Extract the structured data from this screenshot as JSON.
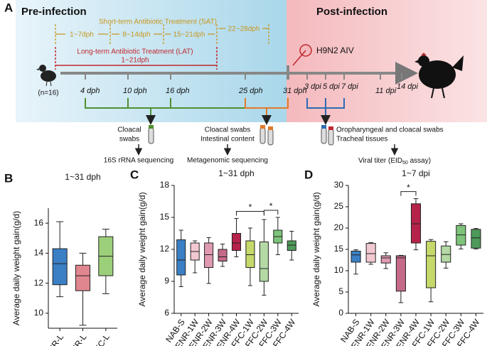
{
  "diagram": {
    "label": "A",
    "pre": "Pre-infection",
    "post": "Post-infection",
    "sat": "Short-term Antibiotic Treatment (SAT)",
    "sat_periods": [
      "1~7dph",
      "8~14dph",
      "15~21dph",
      "22~28dph"
    ],
    "lat": "Long-term Antibiotic Treatment (LAT)",
    "lat_period": "1~21dph",
    "virus": "H9N2 AIV",
    "n": "(n=16)",
    "timepoints": [
      "4 dph",
      "10 dph",
      "16 dph",
      "25 dph",
      "31 dph",
      "3 dpi",
      "5 dpi",
      "7 dpi",
      "11 dpi",
      "14 dpi"
    ],
    "samples": [
      "Cloacal",
      "swabs",
      "Cloacal swabs",
      "Intestinal content",
      "Oropharyngeal and cloacal swabs",
      "Tracheal tissues"
    ],
    "assays": [
      "16S rRNA sequencing",
      "Metagenomic sequencing",
      [
        "Viral titer (EID",
        "50",
        " assay)"
      ]
    ]
  },
  "chart_data": [
    {
      "type": "box",
      "panel": "B",
      "title": "1~31 dph",
      "ylabel": "Average daily weight gain(g/d)",
      "categories": [
        "NNR-L",
        "ENR-L",
        "FFC-L"
      ],
      "colors": [
        "#3b7fc4",
        "#e0868f",
        "#9ccf7a"
      ],
      "min": [
        11.1,
        9.2,
        11.3
      ],
      "q1": [
        11.9,
        11.5,
        12.5
      ],
      "median": [
        13.3,
        12.5,
        13.8
      ],
      "q3": [
        14.3,
        13.2,
        15.1
      ],
      "max": [
        16.1,
        14.0,
        15.6
      ],
      "ylim": [
        9,
        17
      ],
      "yticks": [
        10,
        12,
        14,
        16
      ],
      "significance": []
    },
    {
      "type": "box",
      "panel": "C",
      "title": "1~31 dph",
      "ylabel": "Average daily weight gain(g/d)",
      "categories": [
        "NAB-S",
        "ENR-1W",
        "ENR-2W",
        "ENR-3W",
        "ENR-4W",
        "FFC-1W",
        "FFC-2W",
        "FFC-3W",
        "FFC-4W"
      ],
      "colors": [
        "#3b7fc4",
        "#f2c8d0",
        "#e09ab0",
        "#c56a8a",
        "#b5234a",
        "#c5d96b",
        "#b4d9a4",
        "#7dc47a",
        "#4e9a5a"
      ],
      "min": [
        8.5,
        9.8,
        8.8,
        10.4,
        11.3,
        8.6,
        7.7,
        11.5,
        11.0
      ],
      "q1": [
        9.6,
        11.0,
        10.3,
        10.9,
        11.9,
        10.3,
        9.0,
        12.6,
        11.9
      ],
      "median": [
        11.0,
        11.8,
        11.5,
        11.3,
        12.6,
        11.5,
        10.2,
        13.2,
        12.4
      ],
      "q3": [
        12.9,
        12.6,
        12.6,
        12.0,
        13.5,
        12.8,
        12.7,
        13.8,
        12.8
      ],
      "max": [
        13.8,
        12.8,
        13.1,
        12.5,
        14.9,
        14.0,
        14.8,
        15.0,
        13.7
      ],
      "ylim": [
        6,
        18
      ],
      "yticks": [
        6,
        9,
        12,
        15,
        18
      ],
      "significance": [
        {
          "text": "*",
          "between": [
            "ENR-4W",
            "FFC-2W"
          ]
        },
        {
          "text": "*",
          "between": [
            "FFC-2W",
            "FFC-3W"
          ]
        }
      ]
    },
    {
      "type": "box",
      "panel": "D",
      "title": "1~7 dpi",
      "ylabel": "Average daily weight gain(g/d)",
      "categories": [
        "NAB-S",
        "ENR-1W",
        "ENR-2W",
        "ENR-3W",
        "ENR-4W",
        "FFC-1W",
        "FFC-2W",
        "FFC-3W",
        "FFC-4W"
      ],
      "colors": [
        "#3b7fc4",
        "#f2c8d0",
        "#e09ab0",
        "#c56a8a",
        "#b5234a",
        "#c5d96b",
        "#b4d9a4",
        "#7dc47a",
        "#4e9a5a"
      ],
      "min": [
        9.2,
        11.5,
        10.5,
        2.5,
        14.9,
        2.7,
        10.6,
        15.1,
        15.1
      ],
      "q1": [
        12.0,
        12.0,
        11.8,
        5.2,
        16.5,
        6.0,
        12.0,
        16.0,
        15.3
      ],
      "median": [
        13.7,
        14.0,
        13.0,
        13.0,
        21.0,
        13.5,
        13.8,
        18.4,
        17.7
      ],
      "q3": [
        14.6,
        16.4,
        13.5,
        13.5,
        25.7,
        16.9,
        15.8,
        20.6,
        19.7
      ],
      "max": [
        14.9,
        16.6,
        14.2,
        13.6,
        26.9,
        17.3,
        16.8,
        21.0,
        19.9
      ],
      "ylim": [
        0,
        30
      ],
      "yticks": [
        0,
        5,
        10,
        15,
        20,
        25,
        30
      ],
      "significance": [
        {
          "text": "*",
          "between": [
            "ENR-3W",
            "ENR-4W"
          ]
        }
      ]
    }
  ]
}
